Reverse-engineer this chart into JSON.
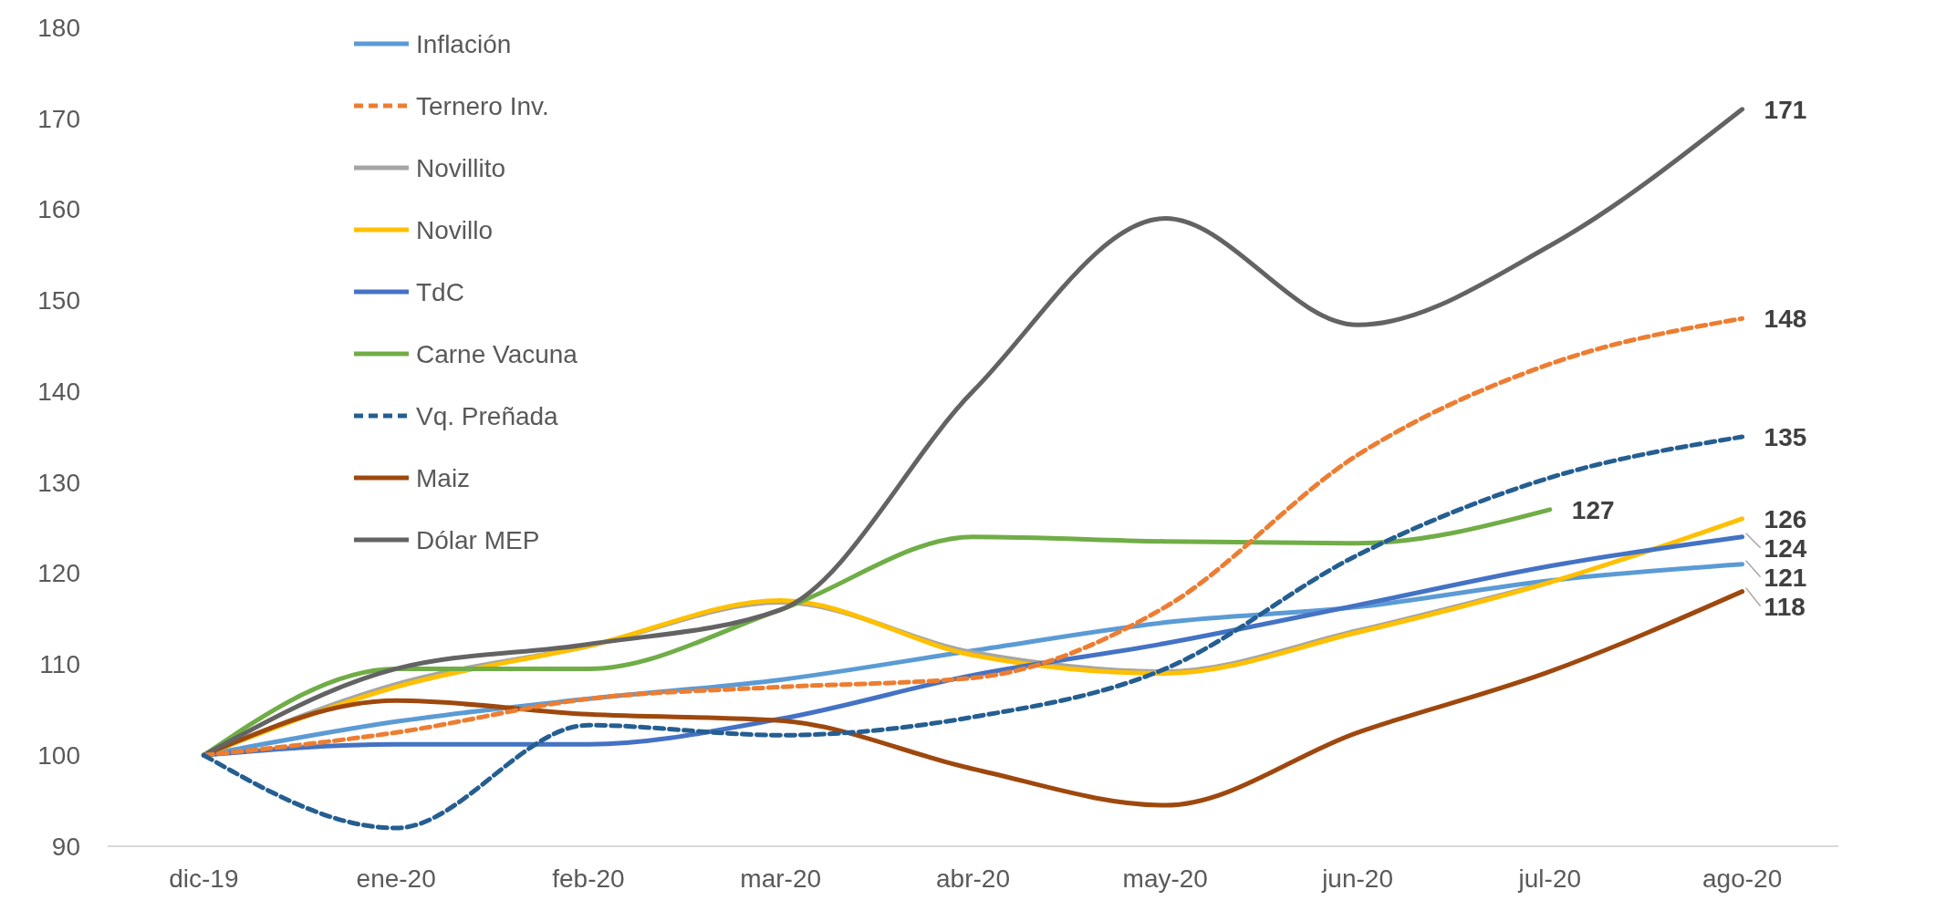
{
  "chart_data": {
    "type": "line",
    "categories": [
      "dic-19",
      "ene-20",
      "feb-20",
      "mar-20",
      "abr-20",
      "may-20",
      "jun-20",
      "jul-20",
      "ago-20"
    ],
    "ylim": [
      90,
      180
    ],
    "yticks": [
      90,
      100,
      110,
      120,
      130,
      140,
      150,
      160,
      170,
      180
    ],
    "legend": "top left",
    "series": [
      {
        "name": "Inflación",
        "color": "#5b9bd5",
        "line_style": "solid",
        "values": [
          100,
          103.7,
          106.2,
          108.3,
          111.5,
          114.6,
          116.3,
          119.2,
          121
        ],
        "value_labels": [
          null,
          null,
          null,
          null,
          null,
          null,
          null,
          null,
          "121"
        ]
      },
      {
        "name": "Ternero Inv.",
        "color": "#ed7d31",
        "line_style": "dashed",
        "values": [
          100,
          102.5,
          106.2,
          107.5,
          108.5,
          116.3,
          133,
          143,
          148
        ],
        "value_labels": [
          null,
          null,
          null,
          null,
          null,
          null,
          null,
          null,
          "148"
        ]
      },
      {
        "name": "Novillito",
        "color": "#a5a5a5",
        "line_style": "solid",
        "values": [
          100,
          107.8,
          112,
          116.8,
          111.3,
          109.2,
          113.7,
          119,
          null
        ]
      },
      {
        "name": "Novillo",
        "color": "#ffc000",
        "line_style": "solid",
        "values": [
          100,
          107.5,
          112,
          117,
          111,
          109,
          113.5,
          119,
          126
        ],
        "value_labels": [
          null,
          null,
          null,
          null,
          null,
          null,
          null,
          null,
          "126"
        ]
      },
      {
        "name": "TdC",
        "color": "#4472c4",
        "line_style": "solid",
        "values": [
          100,
          101.2,
          101.2,
          104,
          108.8,
          112.3,
          116.5,
          120.8,
          124
        ],
        "value_labels": [
          null,
          null,
          null,
          null,
          null,
          null,
          null,
          null,
          "124"
        ]
      },
      {
        "name": "Carne Vacuna",
        "color": "#70ad47",
        "line_style": "solid",
        "values": [
          100,
          109.5,
          109.5,
          116,
          124,
          123.5,
          123.3,
          127,
          null
        ],
        "value_labels": [
          null,
          null,
          null,
          null,
          null,
          null,
          null,
          "127",
          null
        ]
      },
      {
        "name": "Vq. Preñada",
        "color": "#255e91",
        "line_style": "dashed",
        "values": [
          100,
          92,
          103.3,
          102.2,
          104.2,
          109.5,
          122,
          130.5,
          135
        ],
        "value_labels": [
          null,
          null,
          null,
          null,
          null,
          null,
          null,
          null,
          "135"
        ]
      },
      {
        "name": "Maiz",
        "color": "#9e480e",
        "line_style": "solid",
        "values": [
          100,
          106,
          104.5,
          103.8,
          98.5,
          94.5,
          102.5,
          109.2,
          118
        ],
        "value_labels": [
          null,
          null,
          null,
          null,
          null,
          null,
          null,
          null,
          "118"
        ]
      },
      {
        "name": "Dólar MEP",
        "color": "#636363",
        "line_style": "solid",
        "values": [
          100,
          109.5,
          112.2,
          116,
          140,
          159,
          147.3,
          156,
          171
        ],
        "value_labels": [
          null,
          null,
          null,
          null,
          null,
          null,
          null,
          null,
          "171"
        ]
      }
    ]
  }
}
